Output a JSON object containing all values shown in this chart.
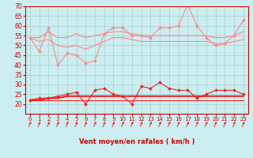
{
  "xlabel": "Vent moyen/en rafales ( km/h )",
  "background_color": "#cceef0",
  "grid_color": "#aad4d8",
  "x": [
    0,
    1,
    2,
    3,
    4,
    5,
    6,
    7,
    8,
    9,
    10,
    11,
    12,
    13,
    14,
    15,
    16,
    17,
    18,
    19,
    20,
    21,
    22,
    23
  ],
  "ylim": [
    15,
    70
  ],
  "yticks": [
    20,
    25,
    30,
    35,
    40,
    45,
    50,
    55,
    60,
    65,
    70
  ],
  "series": [
    {
      "name": "rafales_max",
      "color": "#ff8888",
      "lw": 0.8,
      "marker": "D",
      "ms": 2.0,
      "values": [
        54,
        47,
        59,
        40,
        46,
        45,
        41,
        42,
        56,
        59,
        59,
        55,
        55,
        54,
        59,
        59,
        60,
        71,
        60,
        54,
        50,
        51,
        55,
        63
      ]
    },
    {
      "name": "rafales_moy_upper",
      "color": "#ff8888",
      "lw": 0.8,
      "marker": null,
      "ms": 0,
      "values": [
        54,
        54,
        57,
        54,
        54,
        56,
        54,
        55,
        56,
        57,
        57,
        56,
        55,
        55,
        55,
        55,
        55,
        55,
        55,
        55,
        54,
        54,
        55,
        57
      ]
    },
    {
      "name": "rafales_moy_lower",
      "color": "#ff8888",
      "lw": 0.8,
      "marker": null,
      "ms": 0,
      "values": [
        54,
        52,
        53,
        50,
        49,
        50,
        48,
        50,
        52,
        54,
        54,
        53,
        52,
        52,
        52,
        52,
        52,
        52,
        52,
        52,
        51,
        51,
        52,
        53
      ]
    },
    {
      "name": "vent_max",
      "color": "#ee2222",
      "lw": 0.8,
      "marker": "D",
      "ms": 2.0,
      "values": [
        22,
        23,
        23,
        24,
        25,
        26,
        20,
        27,
        28,
        25,
        24,
        20,
        29,
        28,
        31,
        28,
        27,
        27,
        23,
        25,
        27,
        27,
        27,
        25
      ]
    },
    {
      "name": "vent_moy_upper",
      "color": "#ee2222",
      "lw": 1.5,
      "marker": null,
      "ms": 0,
      "values": [
        22,
        22,
        23,
        23,
        24,
        24,
        24,
        24,
        24,
        24,
        24,
        24,
        24,
        24,
        24,
        24,
        24,
        24,
        24,
        24,
        24,
        24,
        24,
        24
      ]
    },
    {
      "name": "vent_moy_lower",
      "color": "#ee2222",
      "lw": 0.8,
      "marker": null,
      "ms": 0,
      "values": [
        22,
        22,
        22,
        22,
        22,
        22,
        22,
        22,
        22,
        22,
        22,
        22,
        22,
        22,
        22,
        22,
        22,
        22,
        22,
        22,
        22,
        22,
        22,
        22
      ]
    }
  ],
  "arrow_color": "#dd3333",
  "xlabel_color": "#cc0000",
  "xlabel_fontsize": 6.0,
  "tick_fontsize": 5.0,
  "ytick_fontsize": 5.5
}
